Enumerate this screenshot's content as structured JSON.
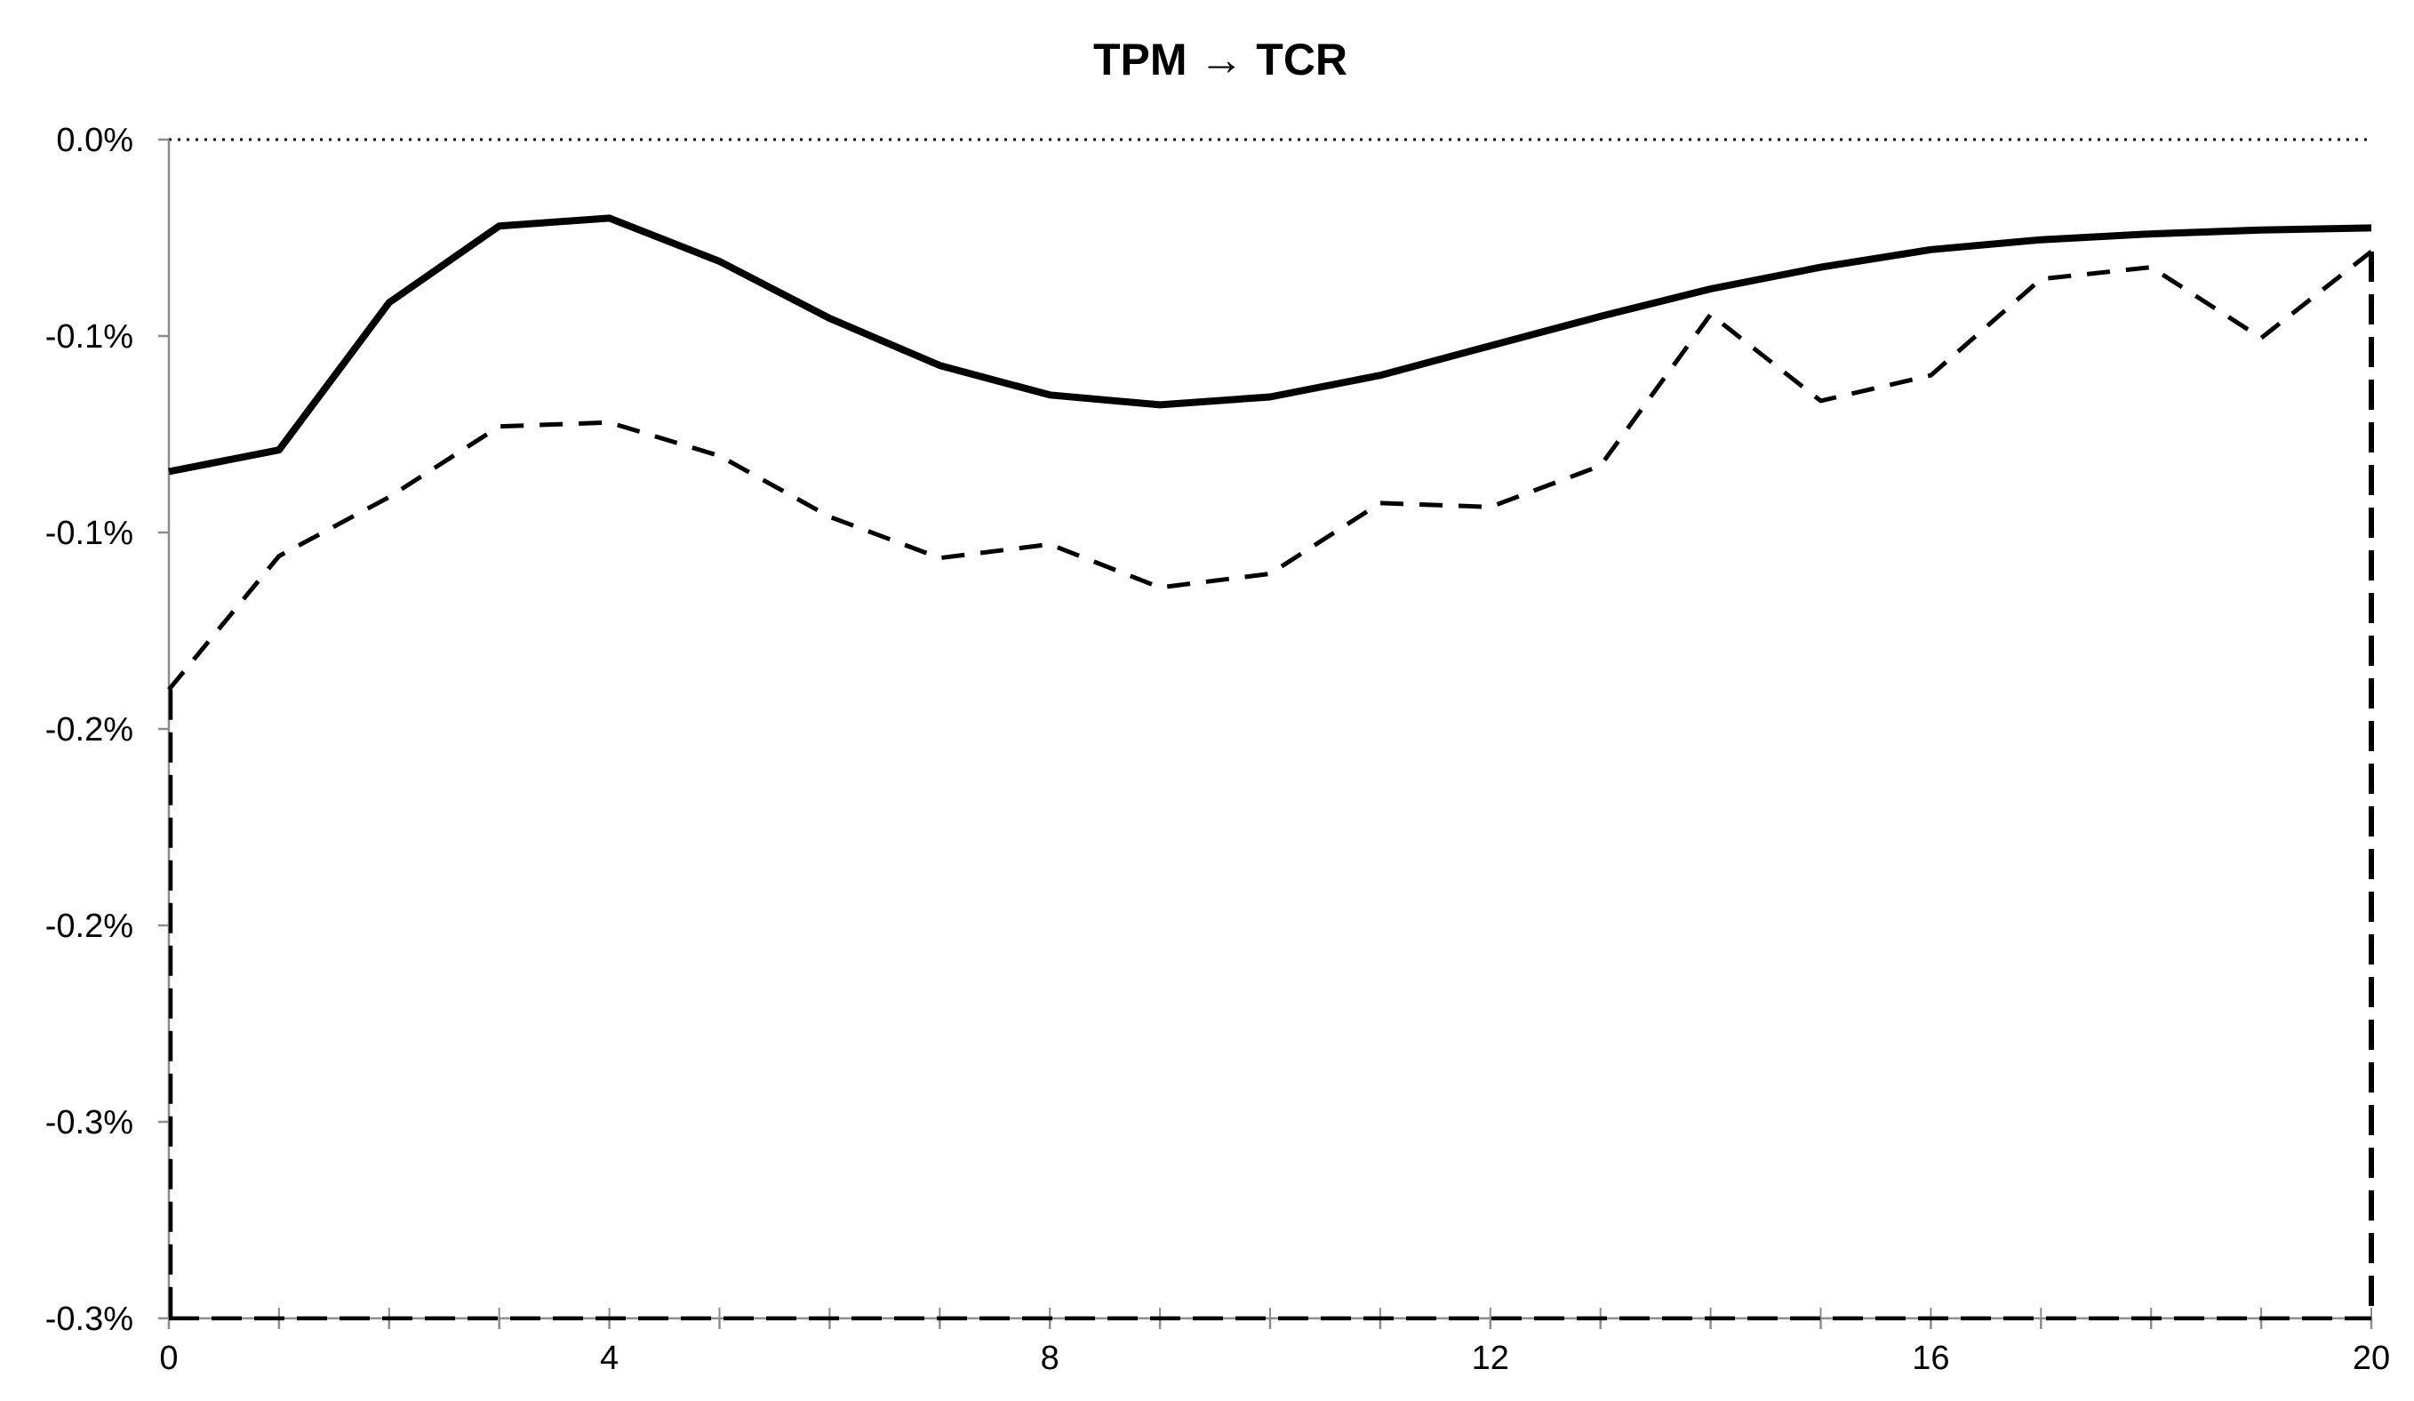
{
  "chart_data": {
    "type": "line",
    "title": "TPM → TCR",
    "xlabel": "",
    "ylabel": "",
    "x": [
      0,
      1,
      2,
      3,
      4,
      5,
      6,
      7,
      8,
      9,
      10,
      11,
      12,
      13,
      14,
      15,
      16,
      17,
      18,
      19,
      20
    ],
    "xlim": [
      0,
      20
    ],
    "ylim": [
      -0.3,
      0.0
    ],
    "y_tick_values": [
      0.0,
      -0.05,
      -0.1,
      -0.15,
      -0.2,
      -0.25,
      -0.3
    ],
    "y_tick_labels": [
      "0.0%",
      "-0.1%",
      "-0.1%",
      "-0.2%",
      "-0.2%",
      "-0.3%",
      "-0.3%"
    ],
    "x_tick_values": [
      0,
      4,
      8,
      12,
      16,
      20
    ],
    "x_tick_labels": [
      "0",
      "4",
      "8",
      "12",
      "16",
      "20"
    ],
    "zero_line": "dotted",
    "grid": false,
    "legend": "none",
    "series": [
      {
        "style": "solid",
        "color": "#000000",
        "values": [
          -0.0845,
          -0.079,
          -0.0415,
          -0.022,
          -0.02,
          -0.031,
          -0.0455,
          -0.0575,
          -0.065,
          -0.0675,
          -0.0655,
          -0.06,
          -0.0525,
          -0.045,
          -0.038,
          -0.0325,
          -0.028,
          -0.0255,
          -0.024,
          -0.023,
          -0.0225
        ]
      },
      {
        "style": "dashed",
        "color": "#000000",
        "values": [
          -0.14,
          -0.106,
          -0.091,
          -0.073,
          -0.072,
          -0.0805,
          -0.096,
          -0.1065,
          -0.103,
          -0.114,
          -0.1105,
          -0.0925,
          -0.0935,
          -0.083,
          -0.0445,
          -0.0665,
          -0.06,
          -0.0355,
          -0.0325,
          -0.0505,
          -0.0285
        ]
      },
      {
        "style": "dashed",
        "color": "#000000",
        "values": [
          -0.3,
          -0.3,
          -0.3,
          -0.3,
          -0.3,
          -0.3,
          -0.3,
          -0.3,
          -0.3,
          -0.3,
          -0.3,
          -0.3,
          -0.3,
          -0.3,
          -0.3,
          -0.3,
          -0.3,
          -0.3,
          -0.3,
          -0.3,
          -0.3
        ]
      }
    ]
  }
}
